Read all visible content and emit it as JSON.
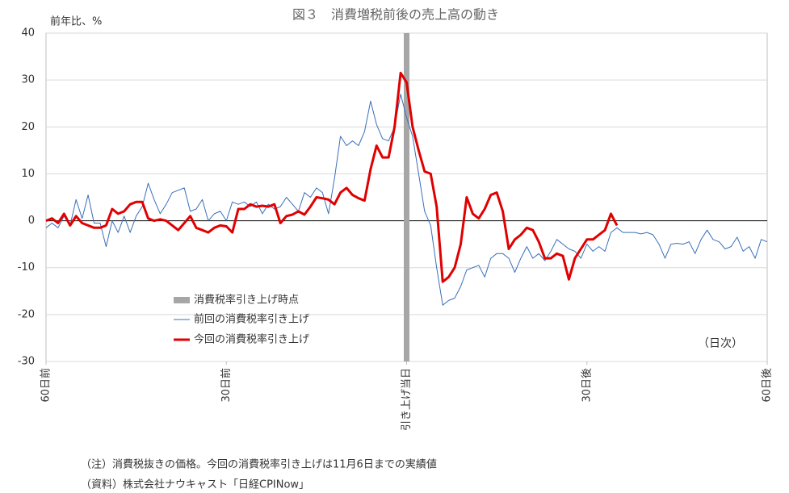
{
  "chart_data": {
    "type": "line",
    "title": "図３　消費増税前後の売上高の動き",
    "y_label": "前年比、%",
    "annotation": "（日次）",
    "notes": [
      "（注）消費税抜きの価格。今回の消費税率引き上げは11月6日までの実績値",
      "（資料）株式会社ナウキャスト「日経CPINow」"
    ],
    "x": [
      -60,
      -59,
      -58,
      -57,
      -56,
      -55,
      -54,
      -53,
      -52,
      -51,
      -50,
      -49,
      -48,
      -47,
      -46,
      -45,
      -44,
      -43,
      -42,
      -41,
      -40,
      -39,
      -38,
      -37,
      -36,
      -35,
      -34,
      -33,
      -32,
      -31,
      -30,
      -29,
      -28,
      -27,
      -26,
      -25,
      -24,
      -23,
      -22,
      -21,
      -20,
      -19,
      -18,
      -17,
      -16,
      -15,
      -14,
      -13,
      -12,
      -11,
      -10,
      -9,
      -8,
      -7,
      -6,
      -5,
      -4,
      -3,
      -2,
      -1,
      0,
      1,
      2,
      3,
      4,
      5,
      6,
      7,
      8,
      9,
      10,
      11,
      12,
      13,
      14,
      15,
      16,
      17,
      18,
      19,
      20,
      21,
      22,
      23,
      24,
      25,
      26,
      27,
      28,
      29,
      30,
      31,
      32,
      33,
      34,
      35,
      36,
      37,
      38,
      39,
      40,
      41,
      42,
      43,
      44,
      45,
      46,
      47,
      48,
      49,
      50,
      51,
      52,
      53,
      54,
      55,
      56,
      57,
      58,
      59,
      60
    ],
    "event_line": {
      "name": "消費税率引き上げ時点",
      "x": 0,
      "color": "#a6a6a6"
    },
    "series": [
      {
        "name": "前回の消費税率引き上げ",
        "color": "#3a6fb8",
        "values": [
          -1.5,
          -0.5,
          -1.5,
          1,
          -1,
          4.5,
          0.5,
          5.5,
          -0.5,
          -0.5,
          -5.5,
          0,
          -2.5,
          1,
          -2.5,
          1,
          3,
          8,
          4.5,
          1.5,
          3.5,
          6,
          6.5,
          7,
          2,
          2.5,
          4.5,
          0,
          1.5,
          2,
          0,
          4,
          3.5,
          4,
          3,
          4,
          1.5,
          3.5,
          2.5,
          3,
          5,
          3.5,
          2,
          6,
          5,
          7,
          6,
          1.5,
          9,
          18,
          16,
          17,
          16,
          19,
          25.5,
          20.5,
          17.5,
          17,
          20,
          27,
          22,
          18,
          10,
          2,
          -1,
          -10,
          -18,
          -17,
          -16.5,
          -14,
          -10.5,
          -10,
          -9.5,
          -12,
          -8,
          -7,
          -7,
          -8,
          -11,
          -8,
          -5.5,
          -8,
          -7,
          -8.5,
          -6.5,
          -4,
          -5,
          -6,
          -6.5,
          -8,
          -5,
          -6.5,
          -5.5,
          -6.5,
          -2.5,
          -1.5,
          -2.5,
          -2.5,
          -2.5,
          -2.8,
          -2.5,
          -3,
          -5,
          -8,
          -5,
          -4.8,
          -5,
          -4.5,
          -7,
          -4,
          -2,
          -4,
          -4.5,
          -6,
          -5.5,
          -3.5,
          -6.5,
          -5.5,
          -8,
          -4,
          -4.5
        ]
      },
      {
        "name": "今回の消費税率引き上げ",
        "color": "#e00000",
        "values": [
          0,
          0.5,
          -0.5,
          1.5,
          -1,
          1,
          -0.5,
          -1,
          -1.5,
          -1.5,
          -1,
          2.5,
          1.5,
          2,
          3.5,
          4,
          4,
          0.5,
          0,
          0.3,
          0,
          -1,
          -2,
          -0.5,
          1,
          -1.5,
          -2,
          -2.5,
          -1.5,
          -1,
          -1.2,
          -2.5,
          2.5,
          2.5,
          3.5,
          3,
          3.2,
          3,
          3.5,
          -0.5,
          1,
          1.3,
          2,
          1.3,
          3,
          5,
          4.8,
          4.5,
          3.5,
          6,
          7,
          5.5,
          4.8,
          4.3,
          11,
          16,
          13.5,
          13.5,
          20,
          31.5,
          29.5,
          20,
          15,
          10.5,
          10,
          3,
          -13,
          -12,
          -10,
          -5,
          5,
          1.5,
          0.5,
          2.5,
          5.5,
          6,
          2,
          -6,
          -4,
          -3,
          -1.5,
          -2,
          -4.5,
          -8,
          -8,
          -7,
          -7.5,
          -12.5,
          -8,
          -6,
          -4,
          -4,
          -3,
          -2,
          1.5,
          -1,
          null,
          null,
          null,
          null,
          null,
          null,
          null,
          null,
          null,
          null,
          null,
          null,
          null,
          null,
          null,
          null,
          null,
          null,
          null,
          null,
          null,
          null,
          null,
          null,
          null
        ]
      }
    ],
    "xlim": [
      -60,
      60
    ],
    "xticks": [
      {
        "value": -60,
        "label": "60日前"
      },
      {
        "value": -30,
        "label": "30日前"
      },
      {
        "value": 0,
        "label": "引き上げ当日"
      },
      {
        "value": 30,
        "label": "30日後"
      },
      {
        "value": 60,
        "label": "60日後"
      }
    ],
    "ylim": [
      -30,
      40
    ],
    "yticks": [
      -30,
      -20,
      -10,
      0,
      10,
      20,
      30,
      40
    ],
    "grid": true
  }
}
